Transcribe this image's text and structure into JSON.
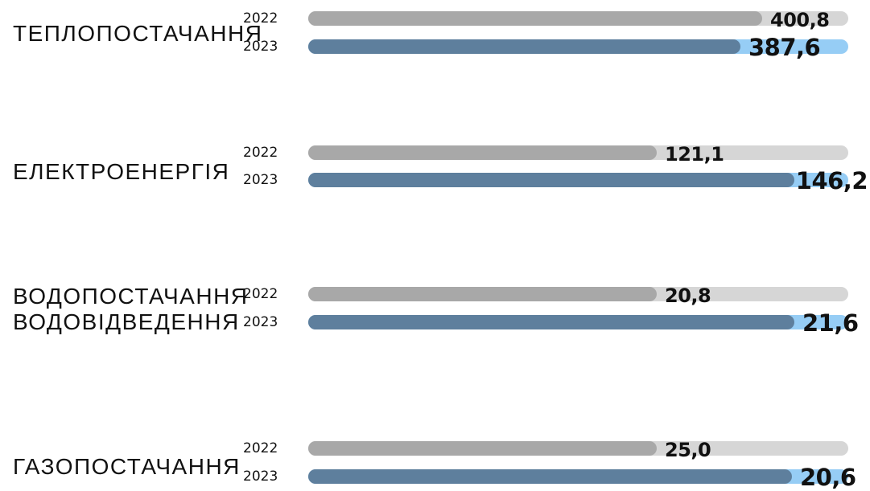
{
  "chart_data": {
    "type": "bar",
    "orientation": "horizontal",
    "categories": [
      "ТЕПЛОПОСТАЧАННЯ",
      "ЕЛЕКТРОЕНЕРГІЯ",
      "ВОДОПОСТАЧАННЯ\nВОДОВІДВЕДЕННЯ",
      "ГАЗОПОСТАЧАННЯ"
    ],
    "series": [
      {
        "name": "2022",
        "values": [
          400.8,
          121.1,
          20.8,
          25.0
        ],
        "labels": [
          "400,8",
          "121,1",
          "20,8",
          "25,0"
        ],
        "fill_ratio": [
          0.84,
          0.645,
          0.645,
          0.645
        ]
      },
      {
        "name": "2023",
        "values": [
          387.6,
          146.2,
          21.6,
          20.6
        ],
        "labels": [
          "387,6",
          "146,2",
          "21,6",
          "20,6"
        ],
        "fill_ratio": [
          0.8,
          0.9,
          0.9,
          0.895
        ]
      }
    ],
    "legend": "none",
    "grid": false
  },
  "colors": {
    "bar_2022": "#a8a8a8",
    "track_2022": "#d6d6d6",
    "bar_2023": "#5e7f9d",
    "track_2023": "#96cdf5",
    "text": "#111111"
  }
}
